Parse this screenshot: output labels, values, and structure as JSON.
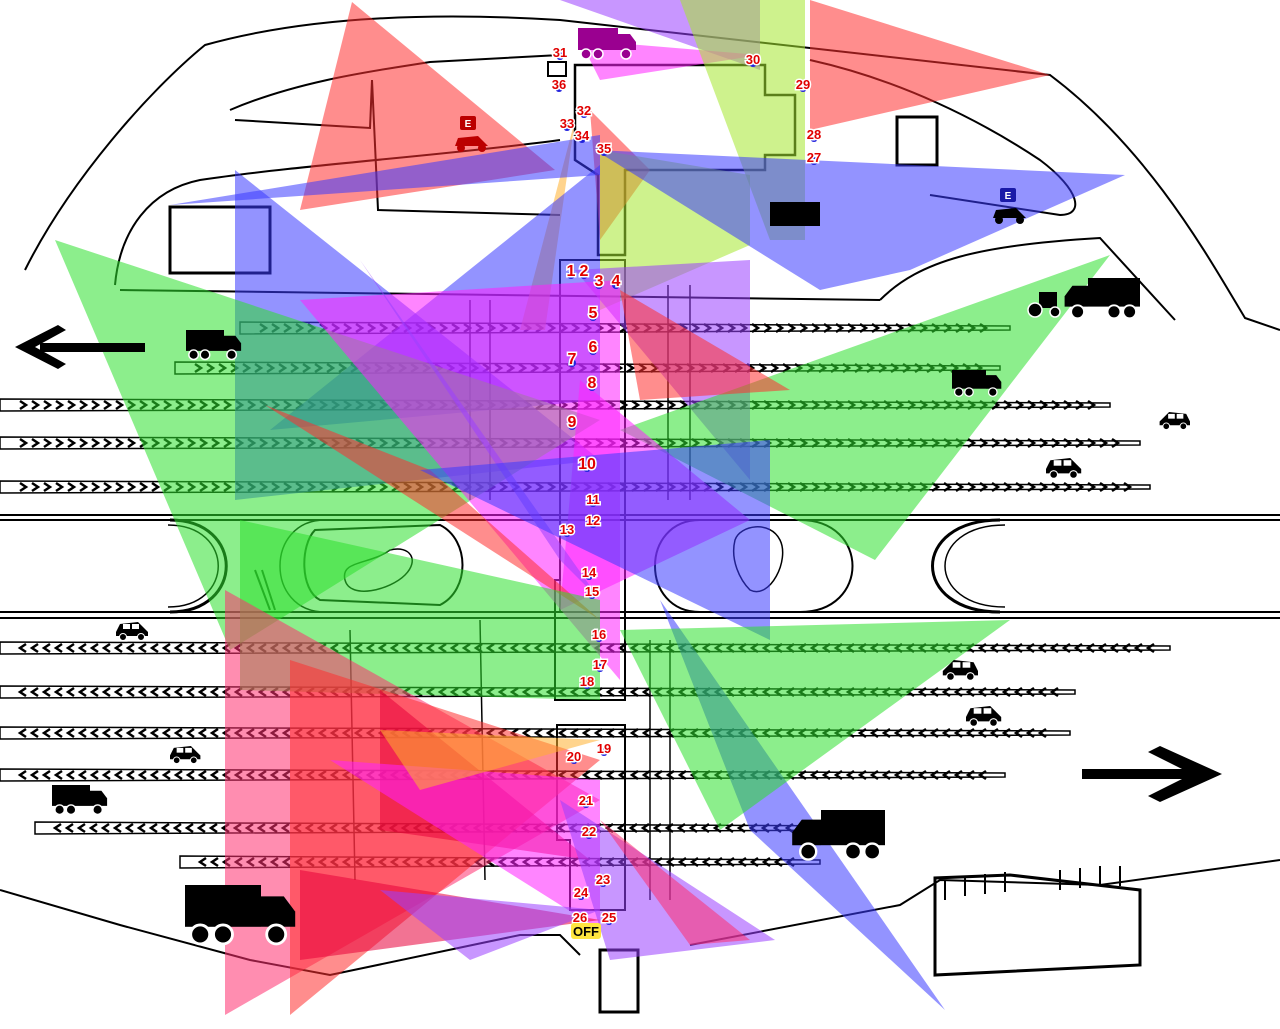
{
  "view": {
    "colors": {
      "background": "#ffffff",
      "line": "#000000",
      "label_text": "#e00000",
      "label_halo": "#ffffff",
      "cone_red": "#ff3030",
      "cone_blue": "#3a3aff",
      "cone_green": "#2ee02e",
      "cone_magenta": "#ff20ff",
      "cone_purple": "#9a40ff",
      "cone_yellow": "#ffb030",
      "cone_lime": "#a6e830",
      "cone_pink": "#ff3070",
      "cone_crimson": "#e8003a"
    }
  },
  "cameras": {
    "labels": [
      "1",
      "2",
      "3",
      "4",
      "5",
      "6",
      "7",
      "8",
      "9",
      "10",
      "11",
      "12",
      "13",
      "14",
      "15",
      "16",
      "17",
      "18",
      "19",
      "20",
      "21",
      "22",
      "23",
      "24",
      "25",
      "26",
      "27",
      "28",
      "29",
      "30",
      "31",
      "32",
      "33",
      "34",
      "35",
      "36"
    ]
  },
  "status": {
    "off_label": "OFF"
  },
  "markers": {
    "e_label": "E"
  },
  "icons": {
    "arrow_left": "arrow-left-icon",
    "arrow_right": "arrow-right-icon",
    "truck": "truck-icon",
    "car": "car-icon",
    "tractor": "tractor-icon",
    "camera": "camera-icon"
  }
}
